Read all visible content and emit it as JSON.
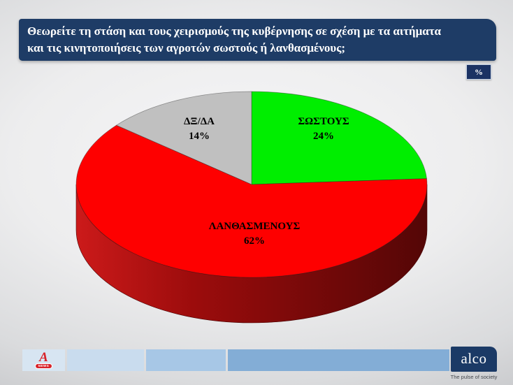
{
  "header": {
    "question_line1": "Θεωρείτε τη στάση και τους χειρισμούς της κυβέρνησης σε σχέση με τα αιτήματα",
    "question_line2": "και τις κινητοποιήσεις των αγροτών σωστούς ή λανθασμένους;",
    "unit_badge": "%"
  },
  "chart_data": {
    "type": "pie",
    "style": "3d",
    "title": "Θεωρείτε τη στάση και τους χειρισμούς της κυβέρνησης σε σχέση με τα αιτήματα και τις κινητοποιήσεις των αγροτών σωστούς ή λανθασμένους;",
    "unit": "%",
    "legend_position": "none",
    "start_angle_deg": 0,
    "direction": "clockwise",
    "slices": [
      {
        "label": "ΣΩΣΤΟΥΣ",
        "value": 24,
        "display": "24%",
        "color": "#00ee00"
      },
      {
        "label": "ΛΑΝΘΑΣΜΕΝΟΥΣ",
        "value": 62,
        "display": "62%",
        "color": "#fe0000"
      },
      {
        "label": "ΔΞ/ΔΑ",
        "value": 14,
        "display": "14%",
        "color": "#c0c0c0"
      }
    ],
    "depth_color": "#6e0909",
    "wall_gradient": [
      "#cc1a1a",
      "#9c0c0c",
      "#770909",
      "#540606"
    ]
  },
  "footer": {
    "alpha_logo_letter": "A",
    "alpha_news_label": "NEWS",
    "alco_logo_text": "alco",
    "alco_tagline": "The pulse of society"
  },
  "colors": {
    "banner_bg": "#1e3c66",
    "badge_bg": "#1b3263",
    "footer_segments": [
      "#d7e5f2",
      "#c9dcee",
      "#a7c7e6",
      "#83add6"
    ],
    "alco_bg": "#1b3a66",
    "alpha_red": "#d8232a"
  }
}
